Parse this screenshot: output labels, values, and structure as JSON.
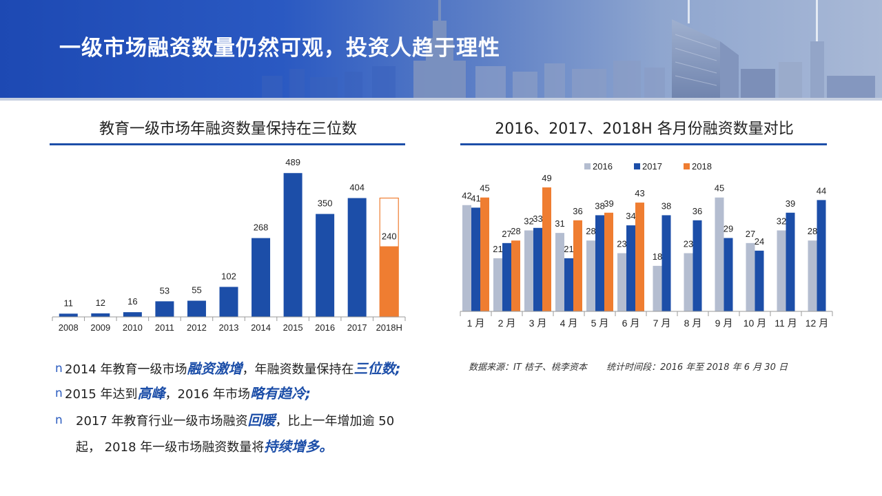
{
  "title": "一级市场融资数量仍然可观，投资人趋于理性",
  "colors": {
    "blue": "#1c4ea8",
    "orange": "#ef7d31",
    "gray": "#b4bdd0"
  },
  "chart_data": [
    {
      "type": "bar",
      "title": "教育一级市场年融资数量保持在三位数",
      "categories": [
        "2008",
        "2009",
        "2010",
        "2011",
        "2012",
        "2013",
        "2014",
        "2015",
        "2016",
        "2017",
        "2018H"
      ],
      "values": [
        11,
        12,
        16,
        53,
        55,
        102,
        268,
        489,
        350,
        404,
        240
      ],
      "highlight_last": true,
      "projected_full_year_outline": 404,
      "ylim": [
        0,
        520
      ],
      "grid": false
    },
    {
      "type": "bar",
      "title": "2016、2017、2018H 各月份融资数量对比",
      "categories": [
        "1 月",
        "2 月",
        "3 月",
        "4 月",
        "5 月",
        "6 月",
        "7 月",
        "8 月",
        "9 月",
        "10 月",
        "11 月",
        "12 月"
      ],
      "series": [
        {
          "name": "2016",
          "color": "#b4bdd0",
          "values": [
            42,
            21,
            32,
            31,
            28,
            23,
            18,
            23,
            45,
            27,
            32,
            28
          ]
        },
        {
          "name": "2017",
          "color": "#1c4ea8",
          "values": [
            41,
            27,
            33,
            21,
            38,
            34,
            38,
            36,
            29,
            24,
            39,
            44
          ]
        },
        {
          "name": "2018",
          "color": "#ef7d31",
          "values": [
            45,
            28,
            49,
            36,
            39,
            43,
            null,
            null,
            null,
            null,
            null,
            null
          ]
        }
      ],
      "legend": "top-center",
      "ylim": [
        0,
        55
      ],
      "grid": false
    }
  ],
  "source_note": "数据来源：IT 桔子、桃李资本",
  "period_note": "统计时间段：2016 年至 2018 年 6 月 30 日",
  "bullet_marker": "n",
  "bullets": [
    {
      "t1": "2014 年教育一级市场",
      "e1": "融资激增",
      "t2": "，年融资数量保持在",
      "e2": "三位数;"
    },
    {
      "t1": "2015 年达到",
      "e1": "高峰",
      "t2": "，2016 年市场",
      "e2": "略有趋冷;"
    },
    {
      "t1": " 2017 年教育行业一级市场融资",
      "e1": "回暖",
      "t2": "，比上一年增加逾 50 起， 2018 年一级市场融资数量将",
      "e2": "持续增多。"
    }
  ]
}
